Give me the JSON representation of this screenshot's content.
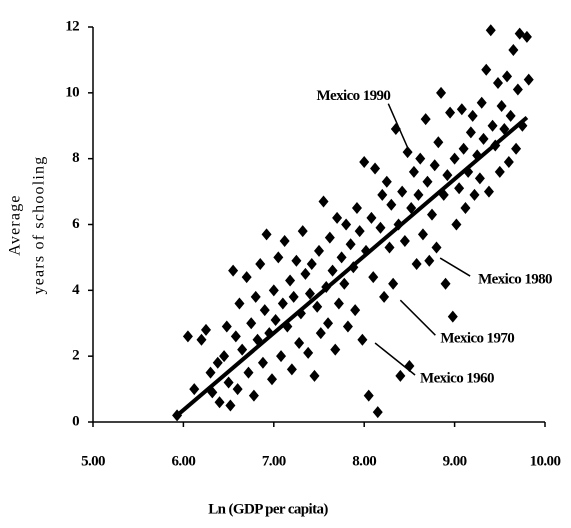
{
  "chart_data": {
    "type": "scatter",
    "x_label": "Ln (GDP per capita)",
    "y_label": [
      "Average",
      "years of schooling"
    ],
    "xlim": [
      5,
      10
    ],
    "ylim": [
      0,
      12
    ],
    "xticks": [
      {
        "value": 5,
        "label": "5.00"
      },
      {
        "value": 6,
        "label": "6.00"
      },
      {
        "value": 7,
        "label": "7.00"
      },
      {
        "value": 8,
        "label": "8.00"
      },
      {
        "value": 9,
        "label": "9.00"
      },
      {
        "value": 10,
        "label": "10.00"
      }
    ],
    "yticks": [
      0,
      2,
      4,
      6,
      8,
      10,
      12
    ],
    "color": "#000000",
    "x": [
      5.93,
      6.05,
      6.12,
      6.2,
      6.25,
      6.3,
      6.32,
      6.38,
      6.4,
      6.45,
      6.48,
      6.5,
      6.52,
      6.55,
      6.58,
      6.6,
      6.62,
      6.65,
      6.7,
      6.72,
      6.75,
      6.78,
      6.8,
      6.82,
      6.85,
      6.88,
      6.9,
      6.92,
      6.95,
      6.98,
      7.0,
      7.02,
      7.05,
      7.08,
      7.1,
      7.12,
      7.15,
      7.18,
      7.2,
      7.22,
      7.25,
      7.28,
      7.3,
      7.32,
      7.35,
      7.38,
      7.4,
      7.42,
      7.45,
      7.48,
      7.5,
      7.52,
      7.55,
      7.58,
      7.6,
      7.62,
      7.65,
      7.68,
      7.7,
      7.72,
      7.75,
      7.78,
      7.8,
      7.82,
      7.85,
      7.88,
      7.9,
      7.92,
      7.95,
      7.98,
      8.0,
      8.02,
      8.05,
      8.08,
      8.1,
      8.12,
      8.15,
      8.18,
      8.2,
      8.22,
      8.25,
      8.28,
      8.3,
      8.32,
      8.35,
      8.38,
      8.4,
      8.42,
      8.45,
      8.48,
      8.5,
      8.52,
      8.55,
      8.58,
      8.6,
      8.62,
      8.65,
      8.68,
      8.7,
      8.72,
      8.75,
      8.78,
      8.8,
      8.82,
      8.85,
      8.88,
      8.9,
      8.92,
      8.95,
      8.98,
      9.0,
      9.02,
      9.05,
      9.08,
      9.1,
      9.12,
      9.15,
      9.18,
      9.2,
      9.22,
      9.25,
      9.28,
      9.3,
      9.32,
      9.35,
      9.38,
      9.4,
      9.42,
      9.45,
      9.48,
      9.5,
      9.52,
      9.55,
      9.58,
      9.6,
      9.62,
      9.65,
      9.68,
      9.7,
      9.72,
      9.75,
      9.8,
      9.82
    ],
    "y": [
      0.2,
      2.6,
      1.0,
      2.5,
      2.8,
      1.5,
      0.9,
      1.8,
      0.6,
      2.0,
      2.9,
      1.2,
      0.5,
      4.6,
      2.6,
      1.0,
      3.6,
      2.2,
      4.4,
      1.5,
      3.0,
      0.8,
      3.8,
      2.5,
      4.8,
      1.8,
      3.4,
      5.7,
      2.7,
      1.3,
      4.0,
      3.1,
      5.0,
      2.0,
      3.6,
      5.5,
      2.9,
      4.3,
      1.6,
      3.8,
      4.9,
      2.4,
      3.3,
      5.8,
      4.5,
      2.1,
      3.9,
      4.8,
      1.4,
      3.5,
      5.2,
      2.7,
      6.7,
      4.1,
      3.0,
      5.6,
      4.6,
      2.2,
      6.2,
      3.6,
      5.0,
      4.2,
      6.0,
      2.9,
      5.4,
      4.7,
      3.4,
      6.5,
      5.8,
      2.5,
      7.9,
      5.2,
      0.8,
      6.2,
      4.4,
      7.7,
      0.3,
      5.9,
      6.9,
      3.8,
      7.3,
      5.3,
      6.6,
      4.2,
      8.9,
      6.0,
      1.4,
      7.0,
      5.5,
      8.2,
      1.7,
      6.5,
      7.6,
      4.8,
      6.9,
      8.0,
      5.7,
      9.2,
      7.3,
      4.9,
      6.3,
      7.8,
      5.3,
      8.5,
      10.0,
      6.9,
      4.2,
      7.5,
      9.4,
      3.2,
      8.0,
      6.0,
      7.1,
      9.5,
      8.3,
      6.5,
      7.6,
      8.8,
      9.3,
      6.9,
      8.1,
      7.4,
      9.7,
      8.6,
      10.7,
      7.0,
      11.9,
      9.0,
      8.4,
      10.3,
      7.6,
      9.6,
      8.9,
      10.5,
      7.9,
      9.3,
      11.3,
      8.3,
      10.1,
      11.8,
      9.0,
      11.7,
      10.4
    ],
    "trendline": {
      "x": [
        5.93,
        9.8
      ],
      "y": [
        0.2,
        9.25
      ]
    },
    "annotations": [
      {
        "text": "Mexico 1990",
        "x": 8.51,
        "y": 8.15
      },
      {
        "text": "Mexico 1980",
        "x": 8.84,
        "y": 4.98
      },
      {
        "text": "Mexico 1970",
        "x": 8.4,
        "y": 3.7
      },
      {
        "text": "Mexico 1960",
        "x": 8.12,
        "y": 2.4
      }
    ]
  }
}
